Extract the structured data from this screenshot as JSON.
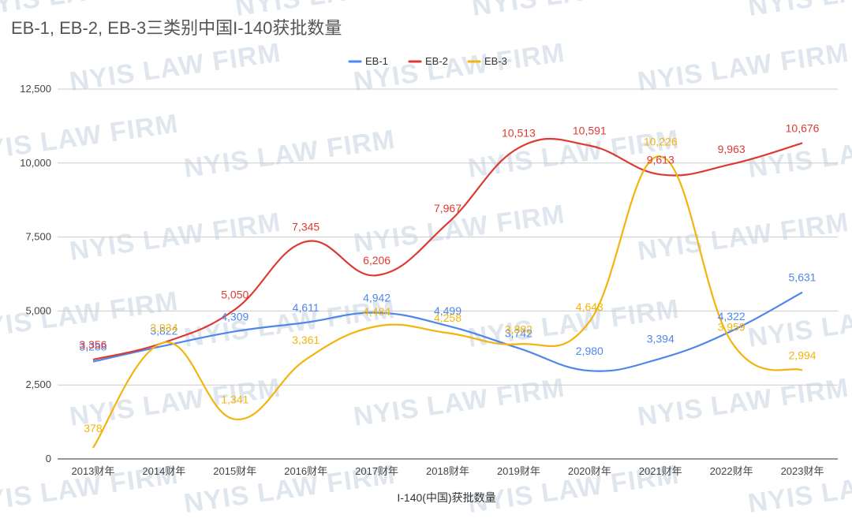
{
  "watermark": "NYIS LAW FIRM",
  "chart_data": {
    "type": "line",
    "title": "EB-1, EB-2, EB-3三类别中国I-140获批数量",
    "xlabel": "I-140(中国)获批数量",
    "ylabel": "",
    "categories": [
      "2013财年",
      "2014财年",
      "2015财年",
      "2016财年",
      "2017财年",
      "2018财年",
      "2019财年",
      "2020财年",
      "2021财年",
      "2022财年",
      "2023财年"
    ],
    "ylim": [
      0,
      12500
    ],
    "yticks": [
      0,
      2500,
      5000,
      7500,
      10000,
      12500
    ],
    "ytick_labels": [
      "0",
      "2,500",
      "5,000",
      "7,500",
      "10,000",
      "12,500"
    ],
    "grid": true,
    "legend_position": "top-center",
    "smooth": true,
    "series": [
      {
        "name": "EB-1",
        "color": "#4f86ec",
        "values": [
          3288,
          3822,
          4309,
          4611,
          4942,
          4499,
          3742,
          2980,
          3394,
          4322,
          5631
        ],
        "labels": [
          "3,288",
          "3,822",
          "4,309",
          "4,611",
          "4,942",
          "4,499",
          "3,742",
          "2,980",
          "3,394",
          "4,322",
          "5,631"
        ]
      },
      {
        "name": "EB-2",
        "color": "#dc3b33",
        "values": [
          3356,
          3934,
          5050,
          7345,
          6206,
          7967,
          10513,
          10591,
          9613,
          9963,
          10676
        ],
        "labels": [
          "3,356",
          "",
          "5,050",
          "7,345",
          "6,206",
          "7,967",
          "10,513",
          "10,591",
          "9,613",
          "9,963",
          "10,676"
        ]
      },
      {
        "name": "EB-3",
        "color": "#f2b50f",
        "values": [
          378,
          3934,
          1341,
          3361,
          4484,
          4258,
          3882,
          4643,
          10226,
          3959,
          2994
        ],
        "labels": [
          "378",
          "3,934",
          "1,341",
          "3,361",
          "4,484",
          "4,258",
          "3,882",
          "4,643",
          "10,226",
          "3,959",
          "2,994"
        ]
      }
    ]
  }
}
